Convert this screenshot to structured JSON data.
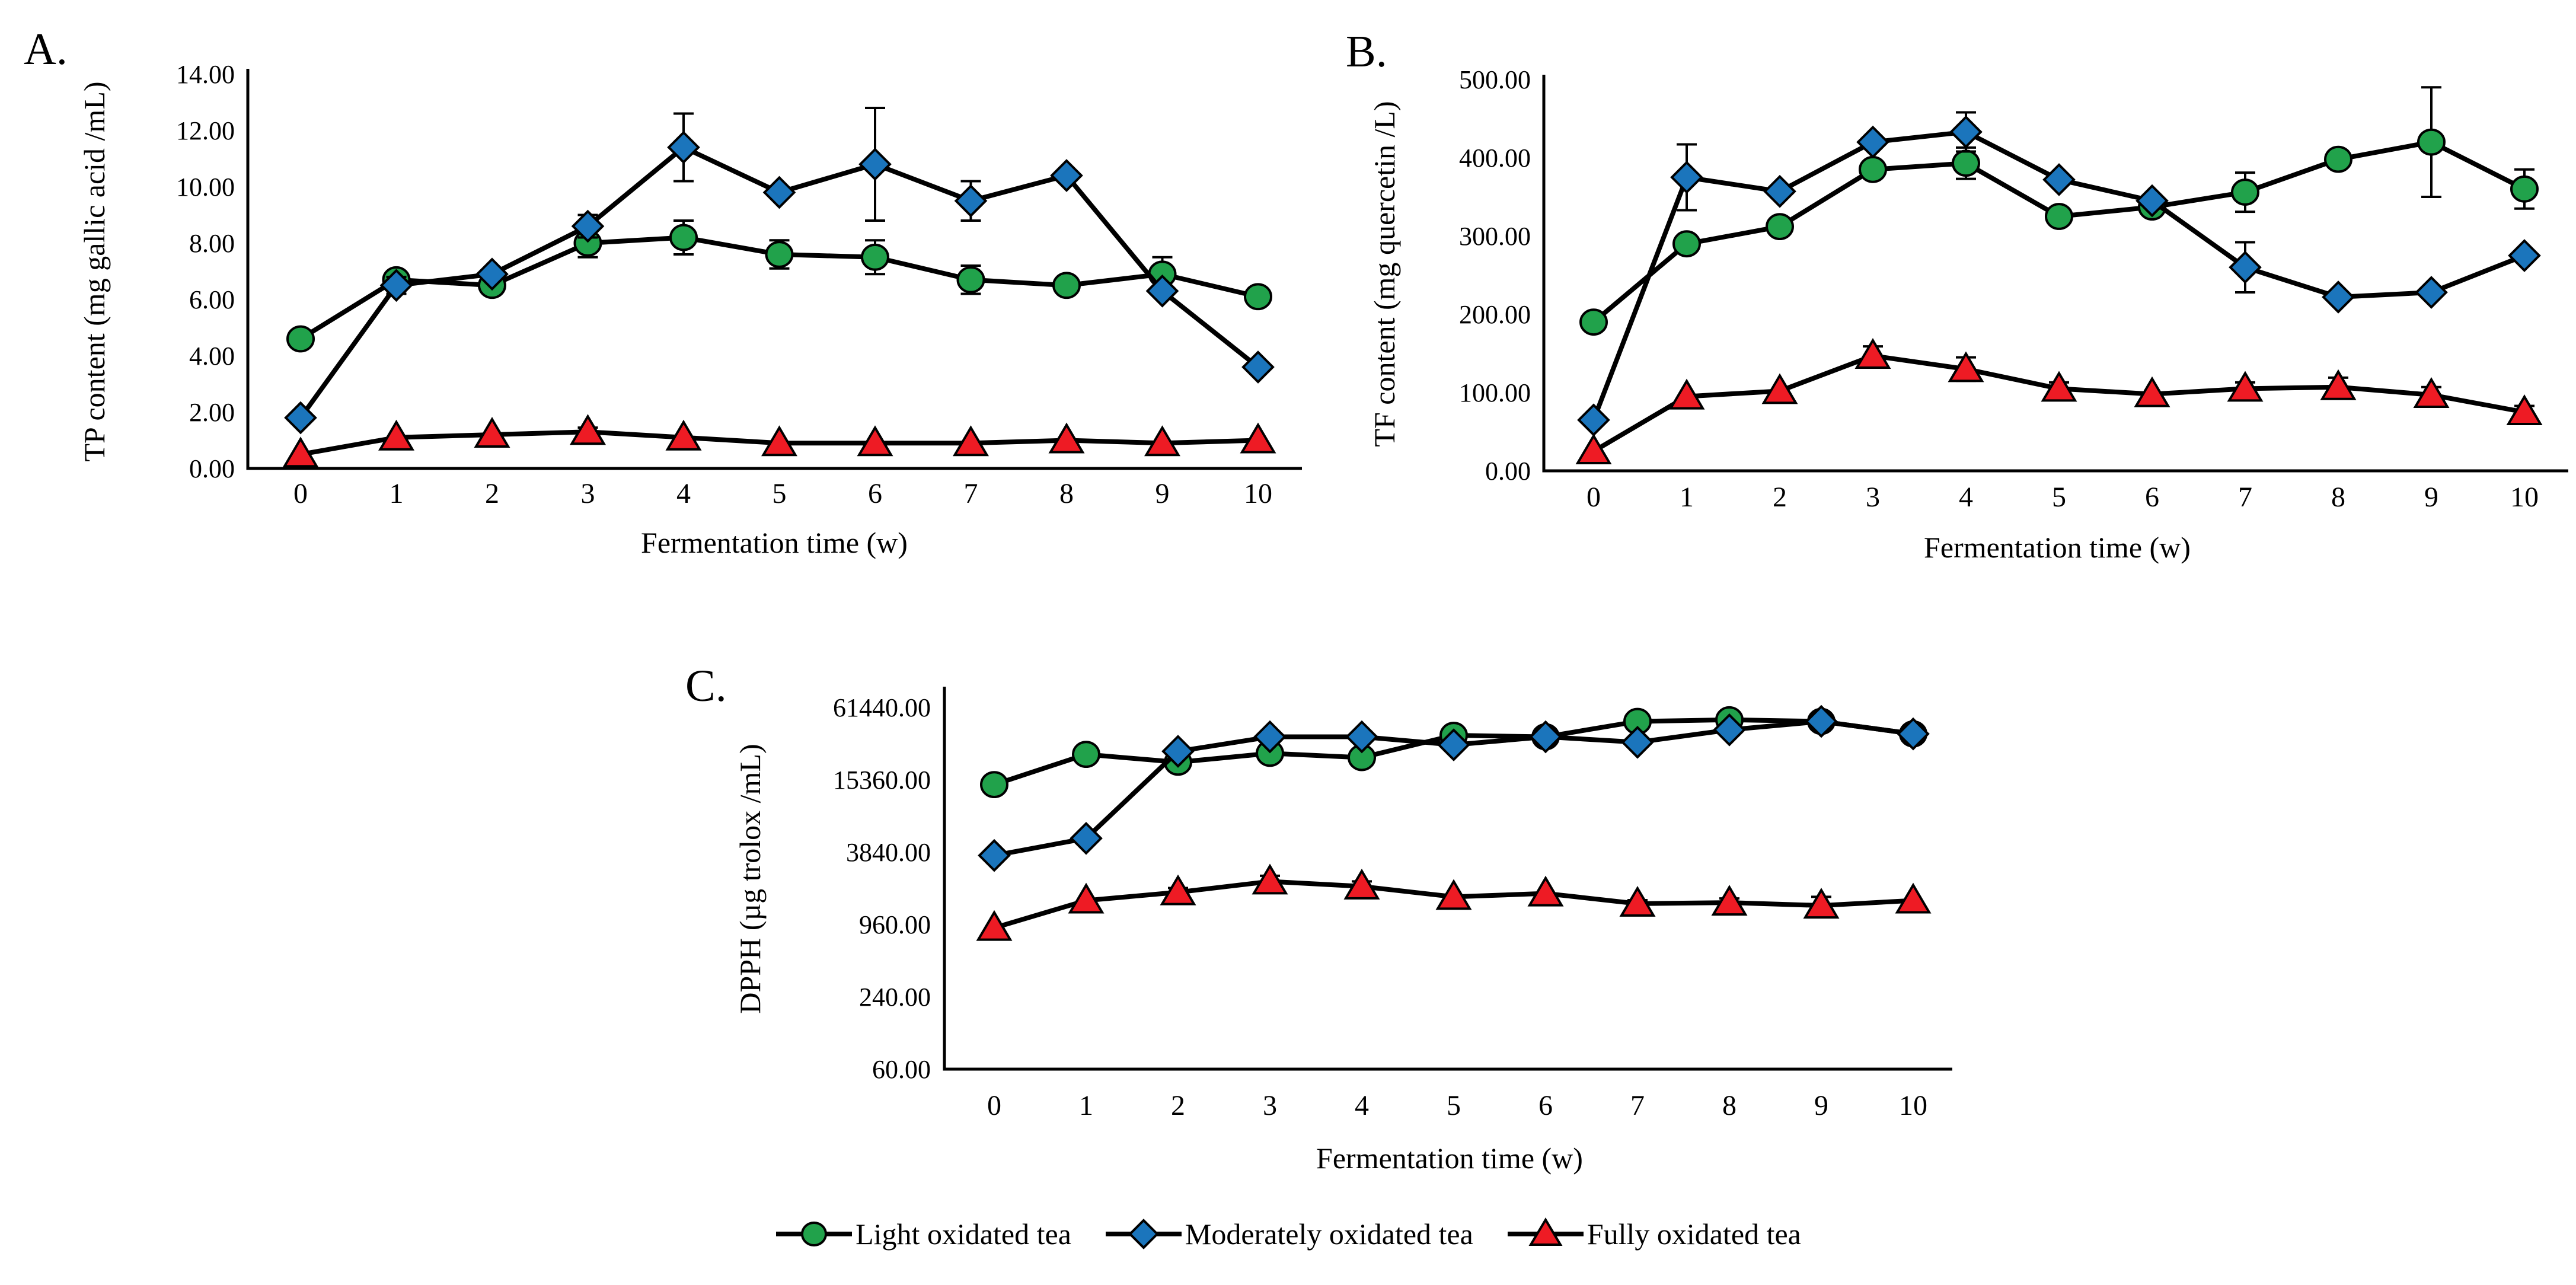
{
  "page": {
    "background": "#ffffff"
  },
  "colors": {
    "light_series": "#21A24B",
    "moderate_series": "#1B75BC",
    "fully_series": "#EE1B24",
    "line": "#000000",
    "panel_label": "#1F3864"
  },
  "legend": {
    "items": [
      {
        "label": "Light oxidated tea",
        "marker": "circle",
        "color": "#21A24B"
      },
      {
        "label": "Moderately oxidated tea",
        "marker": "diamond",
        "color": "#1B75BC"
      },
      {
        "label": "Fully oxidated tea",
        "marker": "triangle",
        "color": "#EE1B24"
      }
    ]
  },
  "chart_data": [
    {
      "id": "A",
      "type": "line",
      "panel_label": "A.",
      "xlabel": "Fermentation time (w)",
      "ylabel": "TP content (mg gallic acid /mL)",
      "y_scale": "linear",
      "ylim": [
        0,
        14
      ],
      "x": [
        0,
        1,
        2,
        3,
        4,
        5,
        6,
        7,
        8,
        9,
        10
      ],
      "x_tick_labels": [
        "0",
        "1",
        "2",
        "3",
        "4",
        "5",
        "6",
        "7",
        "8",
        "9",
        "10"
      ],
      "y_ticks": [
        {
          "v": 0,
          "label": "0.00"
        },
        {
          "v": 2,
          "label": "2.00"
        },
        {
          "v": 4,
          "label": "4.00"
        },
        {
          "v": 6,
          "label": "6.00"
        },
        {
          "v": 8,
          "label": "8.00"
        },
        {
          "v": 10,
          "label": "10.00"
        },
        {
          "v": 12,
          "label": "12.00"
        },
        {
          "v": 14,
          "label": "14.00"
        }
      ],
      "series": [
        {
          "name": "Light oxidated tea",
          "marker": "circle",
          "color": "#21A24B",
          "values": [
            4.6,
            6.7,
            6.5,
            8.0,
            8.2,
            7.6,
            7.5,
            6.7,
            6.5,
            6.9,
            6.1
          ],
          "errors": [
            0,
            0,
            0,
            0.5,
            0.6,
            0.5,
            0.6,
            0.5,
            0,
            0.6,
            0.3
          ]
        },
        {
          "name": "Moderately oxidated tea",
          "marker": "diamond",
          "color": "#1B75BC",
          "values": [
            1.8,
            6.5,
            6.9,
            8.6,
            11.4,
            9.8,
            10.8,
            9.5,
            10.4,
            6.3,
            3.6
          ],
          "errors": [
            0,
            0.3,
            0,
            0.4,
            1.2,
            0,
            2.0,
            0.7,
            0,
            0,
            0
          ]
        },
        {
          "name": "Fully oxidated tea",
          "marker": "triangle",
          "color": "#EE1B24",
          "values": [
            0.5,
            1.1,
            1.2,
            1.3,
            1.1,
            0.9,
            0.9,
            0.9,
            1.0,
            0.9,
            1.0
          ],
          "errors": [
            0,
            0,
            0,
            0.15,
            0,
            0,
            0,
            0,
            0,
            0,
            0
          ]
        }
      ]
    },
    {
      "id": "B",
      "type": "line",
      "panel_label": "B.",
      "xlabel": "Fermentation time (w)",
      "ylabel": "TF content (mg quercetin /L)",
      "y_scale": "linear",
      "ylim": [
        0,
        500
      ],
      "x": [
        0,
        1,
        2,
        3,
        4,
        5,
        6,
        7,
        8,
        9,
        10
      ],
      "x_tick_labels": [
        "0",
        "1",
        "2",
        "3",
        "4",
        "5",
        "6",
        "7",
        "8",
        "9",
        "10"
      ],
      "y_ticks": [
        {
          "v": 0,
          "label": "0.00"
        },
        {
          "v": 100,
          "label": "100.00"
        },
        {
          "v": 200,
          "label": "200.00"
        },
        {
          "v": 300,
          "label": "300.00"
        },
        {
          "v": 400,
          "label": "400.00"
        },
        {
          "v": 500,
          "label": "500.00"
        }
      ],
      "series": [
        {
          "name": "Light oxidated tea",
          "marker": "circle",
          "color": "#21A24B",
          "values": [
            190,
            290,
            312,
            385,
            393,
            325,
            337,
            356,
            398,
            420,
            360
          ],
          "errors": [
            0,
            0,
            0,
            0,
            20,
            0,
            0,
            25,
            0,
            70,
            25
          ]
        },
        {
          "name": "Moderately oxidated tea",
          "marker": "diamond",
          "color": "#1B75BC",
          "values": [
            65,
            375,
            357,
            420,
            433,
            372,
            345,
            260,
            222,
            228,
            275
          ],
          "errors": [
            0,
            42,
            0,
            0,
            25,
            0,
            0,
            32,
            0,
            0,
            0
          ]
        },
        {
          "name": "Fully oxidated tea",
          "marker": "triangle",
          "color": "#EE1B24",
          "values": [
            25,
            95,
            102,
            147,
            130,
            105,
            98,
            105,
            107,
            97,
            75
          ],
          "errors": [
            0,
            0,
            0,
            12,
            15,
            8,
            0,
            8,
            12,
            10,
            8
          ]
        }
      ]
    },
    {
      "id": "C",
      "type": "line",
      "panel_label": "C.",
      "xlabel": "Fermentation time (w)",
      "ylabel": "DPPH (µg trolox /mL)",
      "y_scale": "log4",
      "ylim": [
        60,
        61440
      ],
      "x": [
        0,
        1,
        2,
        3,
        4,
        5,
        6,
        7,
        8,
        9,
        10
      ],
      "x_tick_labels": [
        "0",
        "1",
        "2",
        "3",
        "4",
        "5",
        "6",
        "7",
        "8",
        "9",
        "10"
      ],
      "y_ticks": [
        {
          "v": 60,
          "label": "60.00"
        },
        {
          "v": 240,
          "label": "240.00"
        },
        {
          "v": 960,
          "label": "960.00"
        },
        {
          "v": 3840,
          "label": "3840.00"
        },
        {
          "v": 15360,
          "label": "15360.00"
        },
        {
          "v": 61440,
          "label": "61440.00"
        }
      ],
      "series": [
        {
          "name": "Light oxidated tea",
          "marker": "circle",
          "color": "#21A24B",
          "values": [
            14000,
            25000,
            21500,
            25500,
            23500,
            36000,
            35000,
            47000,
            48500,
            47000,
            37000
          ],
          "errors": [
            0,
            0,
            0,
            0,
            0,
            0,
            0,
            0,
            0,
            0,
            0
          ]
        },
        {
          "name": "Moderately oxidated tea",
          "marker": "diamond",
          "color": "#1B75BC",
          "values": [
            3600,
            5000,
            26500,
            35000,
            35000,
            30000,
            35000,
            31500,
            40000,
            47000,
            37000
          ],
          "errors": [
            0,
            0,
            0,
            0,
            0,
            0,
            0,
            2500,
            0,
            0,
            0
          ]
        },
        {
          "name": "Fully oxidated tea",
          "marker": "triangle",
          "color": "#EE1B24",
          "values": [
            900,
            1520,
            1780,
            2190,
            1990,
            1630,
            1740,
            1430,
            1460,
            1380,
            1520
          ],
          "errors": [
            0,
            0,
            150,
            250,
            200,
            0,
            0,
            100,
            120,
            250,
            0
          ]
        }
      ]
    }
  ]
}
